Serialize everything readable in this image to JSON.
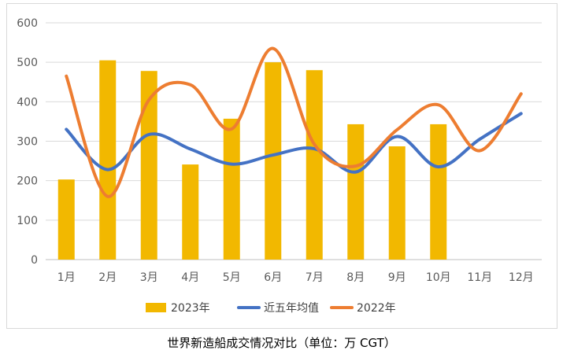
{
  "caption": "世界新造船成交情况对比（单位：万 CGT）",
  "chart_data": {
    "type": "bar+line",
    "categories": [
      "1月",
      "2月",
      "3月",
      "4月",
      "5月",
      "6月",
      "7月",
      "8月",
      "9月",
      "10月",
      "11月",
      "12月"
    ],
    "ylim": [
      0,
      600
    ],
    "yticks": [
      0,
      100,
      200,
      300,
      400,
      500,
      600
    ],
    "grid": true,
    "legend_position": "bottom",
    "series": [
      {
        "name": "2023年",
        "type": "bar",
        "color": "#f2b800",
        "values": [
          203,
          505,
          478,
          241,
          357,
          500,
          480,
          343,
          287,
          343,
          null,
          null
        ]
      },
      {
        "name": "近五年均值",
        "type": "line",
        "color": "#4472c4",
        "values": [
          330,
          228,
          317,
          280,
          242,
          265,
          281,
          222,
          312,
          235,
          305,
          370
        ]
      },
      {
        "name": "2022年",
        "type": "line",
        "color": "#ed7d31",
        "values": [
          465,
          160,
          405,
          443,
          331,
          535,
          292,
          237,
          329,
          392,
          276,
          420
        ]
      }
    ]
  }
}
